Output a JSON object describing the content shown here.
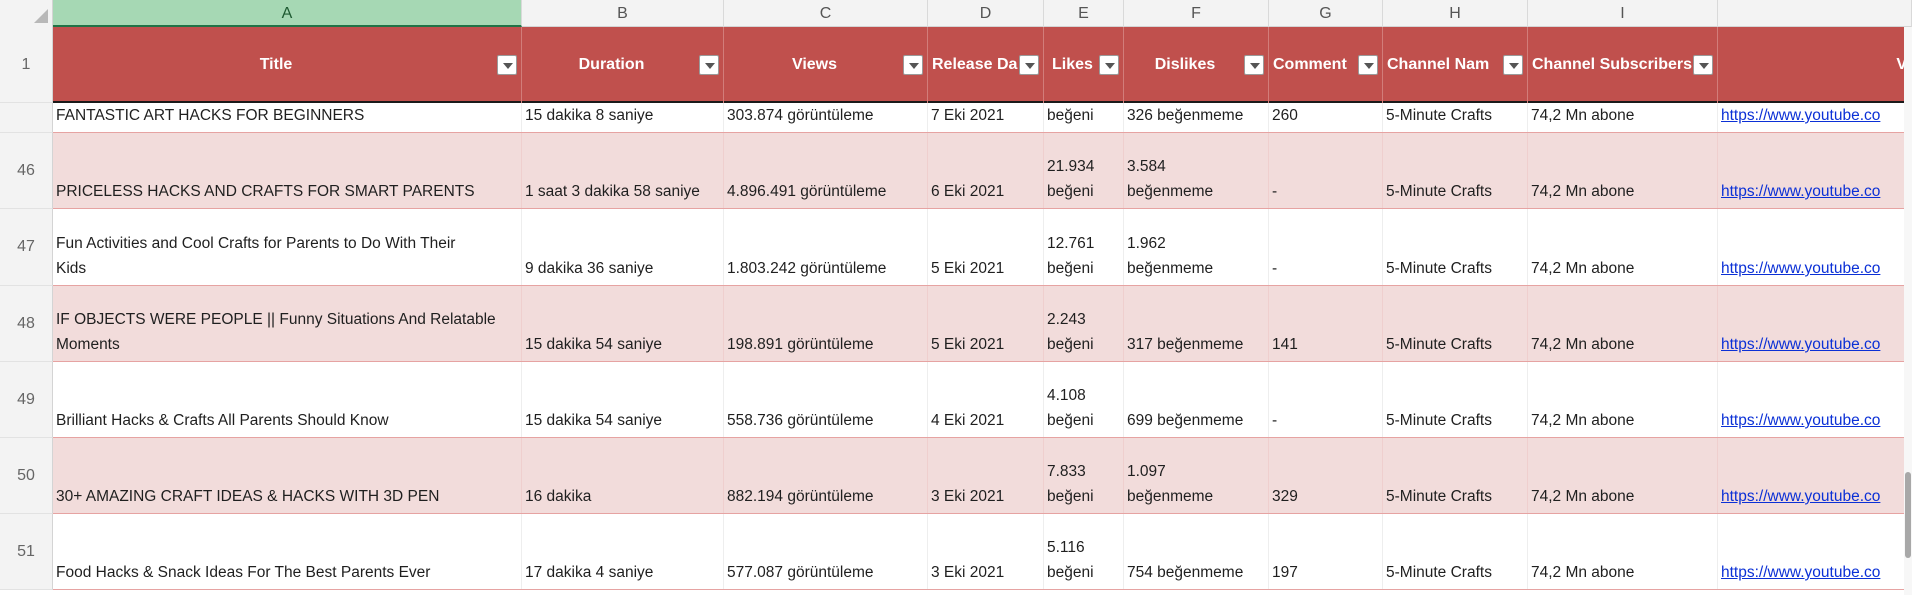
{
  "columns": [
    {
      "letter": "A",
      "header": "Title"
    },
    {
      "letter": "B",
      "header": "Duration"
    },
    {
      "letter": "C",
      "header": "Views"
    },
    {
      "letter": "D",
      "header": "Release Da"
    },
    {
      "letter": "E",
      "header": "Likes"
    },
    {
      "letter": "F",
      "header": "Dislikes"
    },
    {
      "letter": "G",
      "header": "Comment"
    },
    {
      "letter": "H",
      "header": "Channel Nam"
    },
    {
      "letter": "I",
      "header": "Channel Subscribers"
    },
    {
      "letter": "",
      "header": "V"
    }
  ],
  "selected_column": "A",
  "header_row_number": "1",
  "rows": [
    {
      "num": "",
      "cells": [
        "FANTASTIC ART HACKS FOR BEGINNERS",
        "15 dakika 8 saniye",
        "303.874 görüntüleme",
        "7 Eki 2021",
        "beğeni",
        "326 beğenmeme",
        "260",
        "5-Minute Crafts",
        "74,2 Mn abone",
        "https://www.youtube.co"
      ]
    },
    {
      "num": "46",
      "cells": [
        "PRICELESS HACKS AND CRAFTS FOR SMART PARENTS",
        "1 saat 3 dakika 58 saniye",
        "4.896.491 görüntüleme",
        "6 Eki 2021",
        "21.934\nbeğeni",
        "3.584\nbeğenmeme",
        "-",
        "5-Minute Crafts",
        "74,2 Mn abone",
        "https://www.youtube.co"
      ]
    },
    {
      "num": "47",
      "cells": [
        "Fun Activities and Cool Crafts for Parents to Do With Their\nKids",
        "9 dakika 36 saniye",
        "1.803.242 görüntüleme",
        "5 Eki 2021",
        "12.761\nbeğeni",
        "1.962\nbeğenmeme",
        "-",
        "5-Minute Crafts",
        "74,2 Mn abone",
        "https://www.youtube.co"
      ]
    },
    {
      "num": "48",
      "cells": [
        "IF OBJECTS WERE PEOPLE || Funny Situations And Relatable\nMoments",
        "15 dakika 54 saniye",
        "198.891 görüntüleme",
        "5 Eki 2021",
        "2.243\nbeğeni",
        "317 beğenmeme",
        "141",
        "5-Minute Crafts",
        "74,2 Mn abone",
        "https://www.youtube.co"
      ]
    },
    {
      "num": "49",
      "cells": [
        "Brilliant Hacks & Crafts All Parents Should Know",
        "15 dakika 54 saniye",
        "558.736 görüntüleme",
        "4 Eki 2021",
        "4.108\nbeğeni",
        "699 beğenmeme",
        "-",
        "5-Minute Crafts",
        "74,2 Mn abone",
        "https://www.youtube.co"
      ]
    },
    {
      "num": "50",
      "cells": [
        "30+ AMAZING CRAFT IDEAS & HACKS WITH 3D PEN",
        "16 dakika",
        "882.194 görüntüleme",
        "3 Eki 2021",
        "7.833\nbeğeni",
        "1.097\nbeğenmeme",
        "329",
        "5-Minute Crafts",
        "74,2 Mn abone",
        "https://www.youtube.co"
      ]
    },
    {
      "num": "51",
      "cells": [
        "Food Hacks & Snack Ideas For The Best Parents Ever",
        "17 dakika 4 saniye",
        "577.087 görüntüleme",
        "3 Eki 2021",
        "5.116\nbeğeni",
        "754 beğenmeme",
        "197",
        "5-Minute Crafts",
        "74,2 Mn abone",
        "https://www.youtube.co"
      ]
    }
  ],
  "colors": {
    "header_fill": "#c0504d",
    "band_fill": "#f2dcdb",
    "selected_column": "#a6d8b4",
    "link": "#0b30d6"
  }
}
